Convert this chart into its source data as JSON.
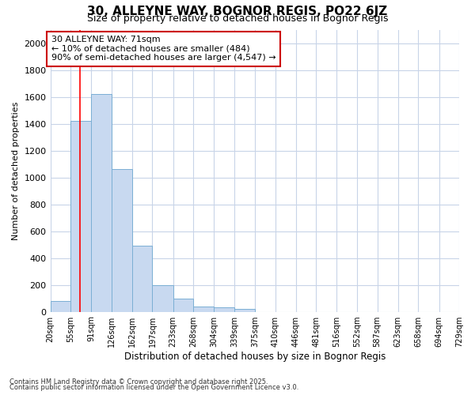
{
  "title1": "30, ALLEYNE WAY, BOGNOR REGIS, PO22 6JZ",
  "title2": "Size of property relative to detached houses in Bognor Regis",
  "xlabel": "Distribution of detached houses by size in Bognor Regis",
  "ylabel": "Number of detached properties",
  "footer1": "Contains HM Land Registry data © Crown copyright and database right 2025.",
  "footer2": "Contains public sector information licensed under the Open Government Licence v3.0.",
  "bin_labels": [
    "20sqm",
    "55sqm",
    "91sqm",
    "126sqm",
    "162sqm",
    "197sqm",
    "233sqm",
    "268sqm",
    "304sqm",
    "339sqm",
    "375sqm",
    "410sqm",
    "446sqm",
    "481sqm",
    "516sqm",
    "552sqm",
    "587sqm",
    "623sqm",
    "658sqm",
    "694sqm",
    "729sqm"
  ],
  "bar_heights": [
    80,
    1420,
    1620,
    1060,
    490,
    200,
    100,
    40,
    30,
    20,
    0,
    0,
    0,
    0,
    0,
    0,
    0,
    0,
    0,
    0,
    0
  ],
  "bin_edges": [
    20,
    55,
    91,
    126,
    162,
    197,
    233,
    268,
    304,
    339,
    375,
    410,
    446,
    481,
    516,
    552,
    587,
    623,
    658,
    694,
    729
  ],
  "bar_color": "#c8d9f0",
  "bar_edge_color": "#7bafd4",
  "red_line_x": 71,
  "ylim": [
    0,
    2100
  ],
  "yticks": [
    0,
    200,
    400,
    600,
    800,
    1000,
    1200,
    1400,
    1600,
    1800,
    2000
  ],
  "annotation_title": "30 ALLEYNE WAY: 71sqm",
  "annotation_line1": "← 10% of detached houses are smaller (484)",
  "annotation_line2": "90% of semi-detached houses are larger (4,547) →",
  "annotation_box_facecolor": "#ffffff",
  "annotation_border_color": "#cc0000",
  "grid_color": "#c8d4e8",
  "background_color": "#ffffff"
}
